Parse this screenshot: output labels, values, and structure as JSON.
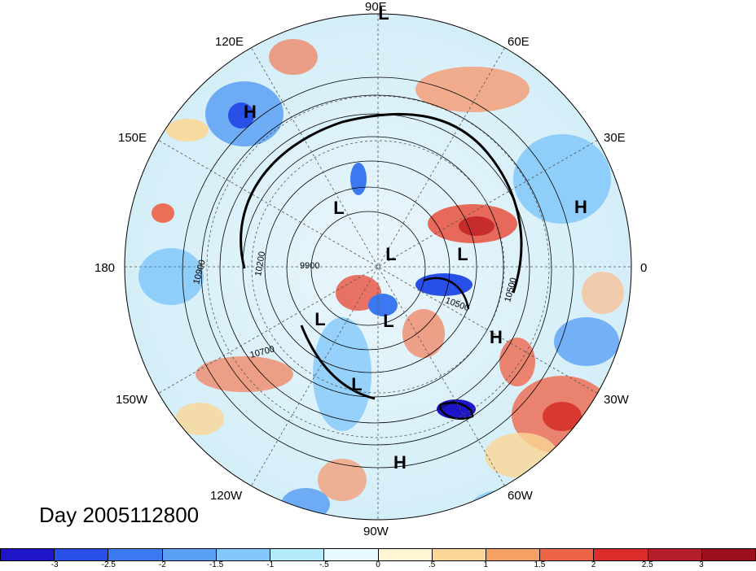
{
  "map": {
    "longitude_labels": [
      "90E",
      "60E",
      "30E",
      "0",
      "30W",
      "60W",
      "90W",
      "120W",
      "150W",
      "180",
      "150E",
      "120E"
    ],
    "pressure_labels": [
      "L",
      "H",
      "L",
      "L",
      "L",
      "L",
      "L",
      "L",
      "H",
      "H",
      "H"
    ],
    "contour_labels": [
      "10900",
      "10200",
      "9900",
      "10700",
      "10500",
      "10500"
    ],
    "date_label": "Day 2005112800"
  },
  "colorbar": {
    "ticks": [
      "-3",
      "-2.5",
      "-2",
      "-1.5",
      "-1",
      "-.5",
      "0",
      ".5",
      "1",
      "1.5",
      "2",
      "2.5",
      "3"
    ],
    "colors": [
      "#1e14c8",
      "#2850e6",
      "#3c78f0",
      "#5aa0f5",
      "#82c8fa",
      "#b4ebfa",
      "#e6faff",
      "#fff5d2",
      "#fad796",
      "#f5a064",
      "#eb6446",
      "#dc2d2d",
      "#b41e28",
      "#9b0f1e"
    ]
  }
}
